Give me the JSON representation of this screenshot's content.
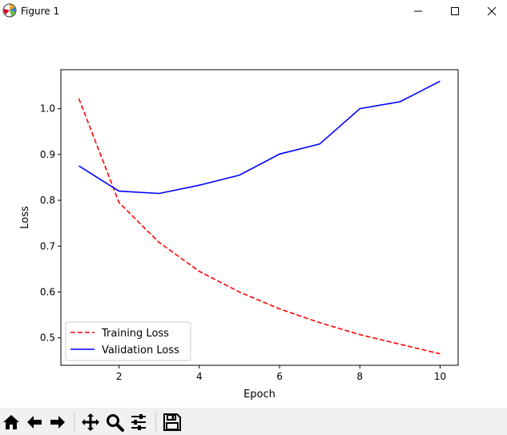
{
  "window": {
    "title": "Figure 1"
  },
  "chart_data": {
    "type": "line",
    "title": "",
    "xlabel": "Epoch",
    "ylabel": "Loss",
    "xlim": [
      0.55,
      10.45
    ],
    "ylim": [
      0.44,
      1.085
    ],
    "x_ticks": [
      2,
      4,
      6,
      8,
      10
    ],
    "y_ticks": [
      0.5,
      0.6,
      0.7,
      0.8,
      0.9,
      1.0
    ],
    "x": [
      1,
      2,
      3,
      4,
      5,
      6,
      7,
      8,
      9,
      10
    ],
    "series": [
      {
        "name": "Training Loss",
        "color": "#ff0000",
        "style": "dashed",
        "values": [
          1.022,
          0.795,
          0.708,
          0.645,
          0.6,
          0.563,
          0.533,
          0.507,
          0.486,
          0.465
        ]
      },
      {
        "name": "Validation Loss",
        "color": "#0000ff",
        "style": "solid",
        "values": [
          0.875,
          0.82,
          0.815,
          0.833,
          0.855,
          0.901,
          0.923,
          1.0,
          1.015,
          1.06
        ]
      }
    ],
    "grid": false,
    "legend": "lower-left"
  },
  "toolbar": {
    "buttons": [
      "home-icon",
      "back-arrow-icon",
      "forward-arrow-icon",
      "pan-icon",
      "zoom-icon",
      "configure-subplots-icon",
      "save-icon"
    ]
  }
}
